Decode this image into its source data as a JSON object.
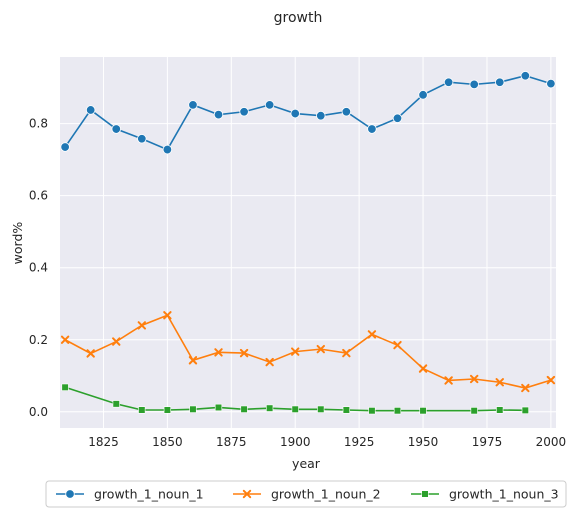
{
  "chart_data": {
    "type": "line",
    "title": "growth",
    "xlabel": "year",
    "ylabel": "word%",
    "xlim": [
      1808,
      2002
    ],
    "ylim": [
      -0.045,
      0.985
    ],
    "xticks": [
      1825,
      1850,
      1875,
      1900,
      1925,
      1950,
      1975,
      2000
    ],
    "yticks": [
      0.0,
      0.2,
      0.4,
      0.6,
      0.8
    ],
    "ytick_labels": [
      "0.0",
      "0.2",
      "0.4",
      "0.6",
      "0.8"
    ],
    "grid": true,
    "legend_position": "bottom-center",
    "series": [
      {
        "name": "growth_1_noun_1",
        "color": "#1f77b4",
        "marker": "circle",
        "x": [
          1810,
          1820,
          1830,
          1840,
          1850,
          1860,
          1870,
          1880,
          1890,
          1900,
          1910,
          1920,
          1930,
          1940,
          1950,
          1960,
          1970,
          1980,
          1990,
          2000
        ],
        "y": [
          0.735,
          0.838,
          0.785,
          0.758,
          0.728,
          0.852,
          0.825,
          0.833,
          0.852,
          0.828,
          0.822,
          0.833,
          0.785,
          0.815,
          0.88,
          0.915,
          0.909,
          0.915,
          0.933,
          0.911
        ]
      },
      {
        "name": "growth_1_noun_2",
        "color": "#ff7f0e",
        "marker": "x",
        "x": [
          1810,
          1820,
          1830,
          1840,
          1850,
          1860,
          1870,
          1880,
          1890,
          1900,
          1910,
          1920,
          1930,
          1940,
          1950,
          1960,
          1970,
          1980,
          1990,
          2000
        ],
        "y": [
          0.2,
          0.162,
          0.195,
          0.24,
          0.268,
          0.143,
          0.165,
          0.163,
          0.138,
          0.167,
          0.174,
          0.163,
          0.215,
          0.185,
          0.12,
          0.087,
          0.091,
          0.082,
          0.066,
          0.088
        ]
      },
      {
        "name": "growth_1_noun_3",
        "color": "#2ca02c",
        "marker": "square",
        "x": [
          1810,
          1830,
          1840,
          1850,
          1860,
          1870,
          1880,
          1890,
          1900,
          1910,
          1920,
          1930,
          1940,
          1950,
          1970,
          1980,
          1990
        ],
        "y": [
          0.068,
          0.022,
          0.005,
          0.005,
          0.007,
          0.012,
          0.007,
          0.01,
          0.007,
          0.007,
          0.005,
          0.003,
          0.003,
          0.003,
          0.003,
          0.005,
          0.004
        ]
      }
    ]
  }
}
